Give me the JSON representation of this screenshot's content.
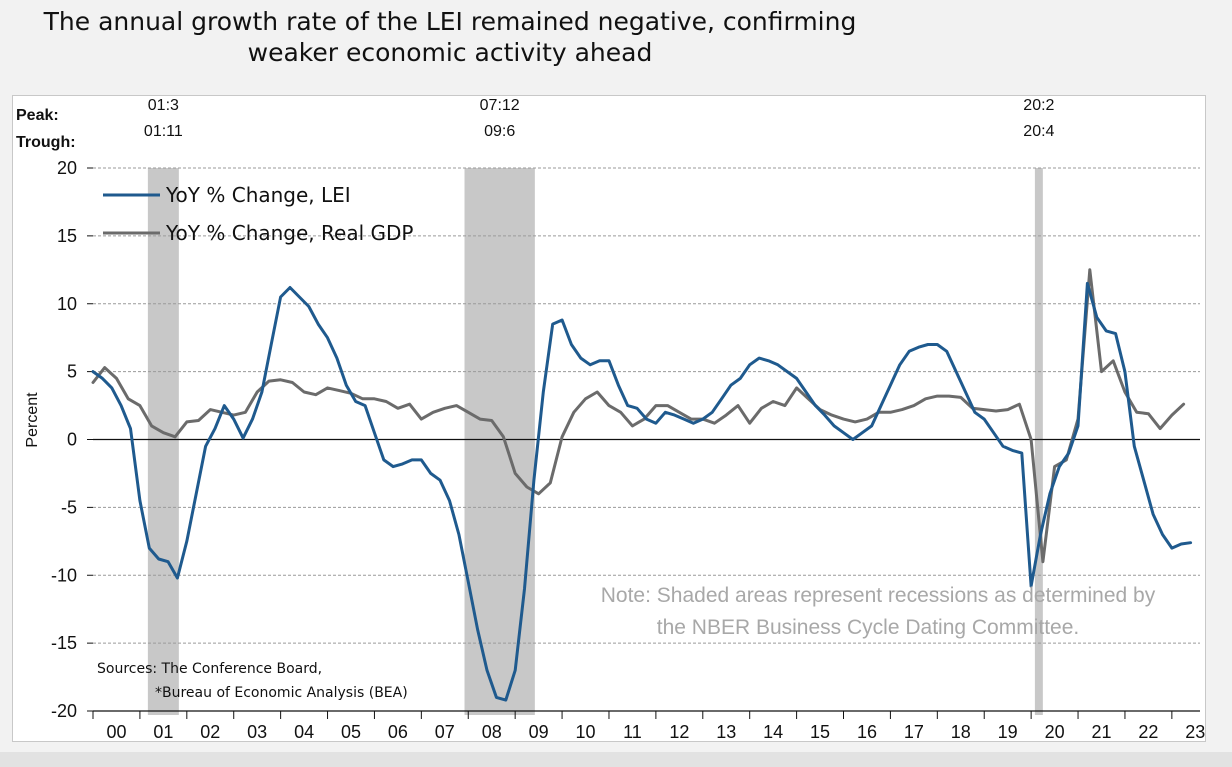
{
  "title": {
    "line1": "The annual growth rate of the LEI remained negative, confirming",
    "line2": "weaker economic activity ahead"
  },
  "annotations": {
    "peak_label": "Peak:",
    "trough_label": "Trough:",
    "recessions": [
      {
        "peak": "01:3",
        "trough": "01:11",
        "start": 2001.17,
        "end": 2001.83
      },
      {
        "peak": "07:12",
        "trough": "09:6",
        "start": 2007.92,
        "end": 2009.42
      },
      {
        "peak": "20:2",
        "trough": "20:4",
        "start": 2020.08,
        "end": 2020.25
      }
    ]
  },
  "note": {
    "line1": "Note: Shaded areas represent recessions as determined by",
    "line2": "the NBER Business Cycle Dating Committee."
  },
  "sources": {
    "line1": "Sources: The Conference Board,",
    "line2": "*Bureau of Economic Analysis (BEA)"
  },
  "colors": {
    "lei": "#1f5a8e",
    "gdp": "#6b6b6b",
    "recession_shade": "#c8c8c8"
  },
  "chart_data": {
    "type": "line",
    "title": "The annual growth rate of the LEI remained negative, confirming weaker economic activity ahead",
    "xlabel": "",
    "ylabel": "Percent",
    "ylim": [
      -20,
      20
    ],
    "xlim": [
      2000.0,
      2023.6
    ],
    "yticks": [
      "20",
      "15",
      "10",
      "5",
      "0",
      "-5",
      "-10",
      "-15",
      "-20"
    ],
    "xticks": [
      "00",
      "01",
      "02",
      "03",
      "04",
      "05",
      "06",
      "07",
      "08",
      "09",
      "10",
      "11",
      "12",
      "13",
      "14",
      "15",
      "16",
      "17",
      "18",
      "19",
      "20",
      "21",
      "22",
      "23"
    ],
    "grid": true,
    "legend_position": "top-left",
    "series": [
      {
        "name": "YoY % Change, LEI",
        "x": [
          2000.0,
          2000.2,
          2000.4,
          2000.6,
          2000.8,
          2001.0,
          2001.2,
          2001.4,
          2001.6,
          2001.8,
          2002.0,
          2002.2,
          2002.4,
          2002.6,
          2002.8,
          2003.0,
          2003.2,
          2003.4,
          2003.6,
          2003.8,
          2004.0,
          2004.2,
          2004.4,
          2004.6,
          2004.8,
          2005.0,
          2005.2,
          2005.4,
          2005.6,
          2005.8,
          2006.0,
          2006.2,
          2006.4,
          2006.6,
          2006.8,
          2007.0,
          2007.2,
          2007.4,
          2007.6,
          2007.8,
          2008.0,
          2008.2,
          2008.4,
          2008.6,
          2008.8,
          2009.0,
          2009.2,
          2009.4,
          2009.6,
          2009.8,
          2010.0,
          2010.2,
          2010.4,
          2010.6,
          2010.8,
          2011.0,
          2011.2,
          2011.4,
          2011.6,
          2011.8,
          2012.0,
          2012.2,
          2012.4,
          2012.6,
          2012.8,
          2013.0,
          2013.2,
          2013.4,
          2013.6,
          2013.8,
          2014.0,
          2014.2,
          2014.4,
          2014.6,
          2014.8,
          2015.0,
          2015.2,
          2015.4,
          2015.6,
          2015.8,
          2016.0,
          2016.2,
          2016.4,
          2016.6,
          2016.8,
          2017.0,
          2017.2,
          2017.4,
          2017.6,
          2017.8,
          2018.0,
          2018.2,
          2018.4,
          2018.6,
          2018.8,
          2019.0,
          2019.2,
          2019.4,
          2019.6,
          2019.8,
          2020.0,
          2020.2,
          2020.4,
          2020.6,
          2020.8,
          2021.0,
          2021.2,
          2021.4,
          2021.6,
          2021.8,
          2022.0,
          2022.2,
          2022.4,
          2022.6,
          2022.8,
          2023.0,
          2023.2,
          2023.4
        ],
        "values": [
          5.0,
          4.5,
          3.8,
          2.5,
          0.8,
          -4.5,
          -8.0,
          -8.8,
          -9.0,
          -10.2,
          -7.5,
          -4.0,
          -0.5,
          0.8,
          2.5,
          1.5,
          0.1,
          1.5,
          3.5,
          7.0,
          10.5,
          11.2,
          10.5,
          9.8,
          8.5,
          7.5,
          6.0,
          4.0,
          2.8,
          2.5,
          0.5,
          -1.5,
          -2.0,
          -1.8,
          -1.5,
          -1.5,
          -2.5,
          -3.0,
          -4.5,
          -7.0,
          -10.5,
          -14.0,
          -17.0,
          -19.0,
          -19.2,
          -17.0,
          -11.0,
          -3.0,
          3.5,
          8.5,
          8.8,
          7.0,
          6.0,
          5.5,
          5.8,
          5.8,
          4.0,
          2.5,
          2.3,
          1.5,
          1.2,
          2.0,
          1.8,
          1.5,
          1.2,
          1.5,
          2.0,
          3.0,
          4.0,
          4.5,
          5.5,
          6.0,
          5.8,
          5.5,
          5.0,
          4.5,
          3.5,
          2.5,
          1.8,
          1.0,
          0.5,
          0.0,
          0.5,
          1.0,
          2.5,
          4.0,
          5.5,
          6.5,
          6.8,
          7.0,
          7.0,
          6.5,
          5.0,
          3.5,
          2.0,
          1.5,
          0.5,
          -0.5,
          -0.8,
          -1.0,
          -10.8,
          -7.0,
          -4.0,
          -2.0,
          -1.0,
          1.0,
          11.5,
          9.0,
          8.0,
          7.8,
          5.0,
          -0.5,
          -3.0,
          -5.5,
          -7.0,
          -8.0,
          -7.7,
          -7.6
        ]
      },
      {
        "name": "YoY % Change, Real GDP",
        "x": [
          2000.0,
          2000.25,
          2000.5,
          2000.75,
          2001.0,
          2001.25,
          2001.5,
          2001.75,
          2002.0,
          2002.25,
          2002.5,
          2002.75,
          2003.0,
          2003.25,
          2003.5,
          2003.75,
          2004.0,
          2004.25,
          2004.5,
          2004.75,
          2005.0,
          2005.25,
          2005.5,
          2005.75,
          2006.0,
          2006.25,
          2006.5,
          2006.75,
          2007.0,
          2007.25,
          2007.5,
          2007.75,
          2008.0,
          2008.25,
          2008.5,
          2008.75,
          2009.0,
          2009.25,
          2009.5,
          2009.75,
          2010.0,
          2010.25,
          2010.5,
          2010.75,
          2011.0,
          2011.25,
          2011.5,
          2011.75,
          2012.0,
          2012.25,
          2012.5,
          2012.75,
          2013.0,
          2013.25,
          2013.5,
          2013.75,
          2014.0,
          2014.25,
          2014.5,
          2014.75,
          2015.0,
          2015.25,
          2015.5,
          2015.75,
          2016.0,
          2016.25,
          2016.5,
          2016.75,
          2017.0,
          2017.25,
          2017.5,
          2017.75,
          2018.0,
          2018.25,
          2018.5,
          2018.75,
          2019.0,
          2019.25,
          2019.5,
          2019.75,
          2020.0,
          2020.25,
          2020.5,
          2020.75,
          2021.0,
          2021.25,
          2021.5,
          2021.75,
          2022.0,
          2022.25,
          2022.5,
          2022.75,
          2023.0,
          2023.25
        ],
        "values": [
          4.2,
          5.3,
          4.5,
          3.0,
          2.5,
          1.0,
          0.5,
          0.2,
          1.3,
          1.4,
          2.2,
          2.0,
          1.8,
          2.0,
          3.5,
          4.3,
          4.4,
          4.2,
          3.5,
          3.3,
          3.8,
          3.6,
          3.4,
          3.0,
          3.0,
          2.8,
          2.3,
          2.6,
          1.5,
          2.0,
          2.3,
          2.5,
          2.0,
          1.5,
          1.4,
          0.2,
          -2.5,
          -3.5,
          -4.0,
          -3.2,
          0.2,
          2.0,
          3.0,
          3.5,
          2.5,
          2.0,
          1.0,
          1.5,
          2.5,
          2.5,
          2.0,
          1.5,
          1.5,
          1.2,
          1.8,
          2.5,
          1.2,
          2.3,
          2.8,
          2.5,
          3.8,
          3.0,
          2.2,
          1.8,
          1.5,
          1.3,
          1.5,
          2.0,
          2.0,
          2.2,
          2.5,
          3.0,
          3.2,
          3.2,
          3.1,
          2.3,
          2.2,
          2.1,
          2.2,
          2.6,
          0.0,
          -9.0,
          -2.0,
          -1.5,
          1.5,
          12.5,
          5.0,
          5.8,
          3.5,
          2.0,
          1.9,
          0.8,
          1.8,
          2.6
        ]
      }
    ]
  }
}
